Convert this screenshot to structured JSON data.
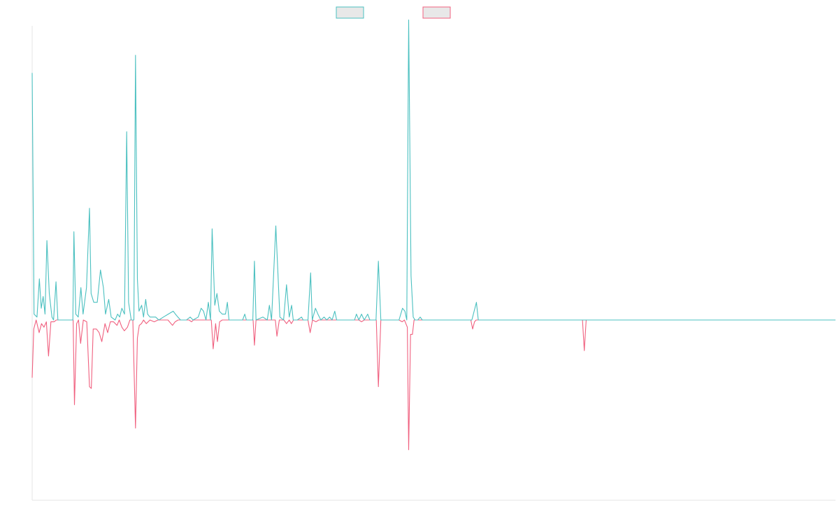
{
  "chart_data": {
    "type": "line",
    "title": "",
    "xlabel": "",
    "ylabel": "",
    "grid": false,
    "legend_position": "top-center",
    "x_range": [
      0,
      300
    ],
    "ylim": [
      -1.0,
      1.0
    ],
    "series": [
      {
        "color": "#4bc0c0",
        "fill": "#e8e8e8",
        "points": [
          [
            0,
            0.84
          ],
          [
            0.7,
            0.02
          ],
          [
            1.8,
            0.01
          ],
          [
            2.7,
            0.14
          ],
          [
            3.4,
            0.04
          ],
          [
            4.1,
            0.08
          ],
          [
            4.8,
            0.02
          ],
          [
            5.5,
            0.27
          ],
          [
            6.4,
            0.09
          ],
          [
            7.4,
            0.01
          ],
          [
            8.0,
            0.0
          ],
          [
            8.9,
            0.13
          ],
          [
            9.6,
            0.0
          ],
          [
            15.2,
            0.0
          ],
          [
            15.6,
            0.3
          ],
          [
            16.3,
            0.02
          ],
          [
            17.2,
            0.01
          ],
          [
            18.2,
            0.11
          ],
          [
            19.0,
            0.02
          ],
          [
            20.3,
            0.11
          ],
          [
            21.4,
            0.38
          ],
          [
            22.0,
            0.09
          ],
          [
            23.0,
            0.06
          ],
          [
            24.3,
            0.06
          ],
          [
            25.5,
            0.17
          ],
          [
            26.6,
            0.11
          ],
          [
            27.4,
            0.02
          ],
          [
            28.6,
            0.07
          ],
          [
            29.5,
            0.01
          ],
          [
            31.0,
            0.0
          ],
          [
            31.9,
            0.02
          ],
          [
            32.7,
            0.01
          ],
          [
            33.5,
            0.04
          ],
          [
            34.5,
            0.02
          ],
          [
            35.3,
            0.64
          ],
          [
            36.0,
            0.06
          ],
          [
            37.0,
            0.0
          ],
          [
            38.0,
            0.0
          ],
          [
            38.6,
            0.9
          ],
          [
            39.3,
            0.14
          ],
          [
            39.9,
            0.03
          ],
          [
            40.9,
            0.05
          ],
          [
            41.6,
            0.01
          ],
          [
            42.4,
            0.07
          ],
          [
            43.1,
            0.02
          ],
          [
            44.0,
            0.01
          ],
          [
            46.1,
            0.01
          ],
          [
            47.3,
            0.0
          ],
          [
            49.0,
            0.01
          ],
          [
            50.8,
            0.02
          ],
          [
            52.7,
            0.03
          ],
          [
            53.5,
            0.02
          ],
          [
            54.4,
            0.01
          ],
          [
            55.4,
            0.0
          ],
          [
            57.6,
            0.0
          ],
          [
            59.0,
            0.01
          ],
          [
            60.1,
            0.0
          ],
          [
            62.0,
            0.01
          ],
          [
            63.1,
            0.04
          ],
          [
            64.0,
            0.03
          ],
          [
            64.9,
            0.0
          ],
          [
            65.8,
            0.06
          ],
          [
            66.6,
            0.0
          ],
          [
            67.2,
            0.31
          ],
          [
            68.2,
            0.05
          ],
          [
            69.0,
            0.09
          ],
          [
            69.9,
            0.03
          ],
          [
            71.0,
            0.02
          ],
          [
            72.2,
            0.02
          ],
          [
            72.9,
            0.06
          ],
          [
            73.5,
            0.0
          ],
          [
            78.6,
            0.0
          ],
          [
            79.4,
            0.02
          ],
          [
            80.0,
            0.0
          ],
          [
            82.4,
            0.0
          ],
          [
            83.0,
            0.2
          ],
          [
            83.6,
            0.0
          ],
          [
            86.2,
            0.01
          ],
          [
            87.8,
            0.0
          ],
          [
            88.6,
            0.05
          ],
          [
            89.4,
            0.0
          ],
          [
            91.0,
            0.32
          ],
          [
            92.5,
            0.01
          ],
          [
            93.9,
            0.0
          ],
          [
            95.0,
            0.12
          ],
          [
            96.0,
            0.01
          ],
          [
            96.9,
            0.05
          ],
          [
            97.5,
            0.0
          ],
          [
            99.0,
            0.0
          ],
          [
            100.6,
            0.01
          ],
          [
            101.2,
            0.0
          ],
          [
            103.0,
            0.0
          ],
          [
            104.0,
            0.16
          ],
          [
            104.6,
            0.0
          ],
          [
            105.8,
            0.04
          ],
          [
            106.7,
            0.02
          ],
          [
            107.8,
            0.0
          ],
          [
            109.0,
            0.01
          ],
          [
            110.0,
            0.0
          ],
          [
            111.1,
            0.01
          ],
          [
            112.0,
            0.0
          ],
          [
            113.0,
            0.03
          ],
          [
            113.7,
            0.0
          ],
          [
            120.4,
            0.0
          ],
          [
            121.1,
            0.02
          ],
          [
            122.0,
            0.0
          ],
          [
            123.0,
            0.02
          ],
          [
            124.0,
            0.0
          ],
          [
            125.3,
            0.02
          ],
          [
            126.1,
            0.0
          ],
          [
            128.4,
            0.0
          ],
          [
            129.3,
            0.2
          ],
          [
            130.2,
            0.0
          ],
          [
            137.0,
            0.0
          ],
          [
            138.3,
            0.04
          ],
          [
            139.2,
            0.03
          ],
          [
            139.9,
            0.0
          ],
          [
            140.6,
            1.02
          ],
          [
            141.5,
            0.15
          ],
          [
            142.3,
            0.01
          ],
          [
            143.0,
            0.0
          ],
          [
            144.0,
            0.0
          ],
          [
            144.9,
            0.01
          ],
          [
            145.7,
            0.0
          ],
          [
            149.0,
            0.0
          ],
          [
            164.2,
            0.0
          ],
          [
            165.9,
            0.06
          ],
          [
            166.6,
            0.0
          ],
          [
            168.0,
            0.0
          ],
          [
            300,
            0.0
          ]
        ]
      },
      {
        "color": "#f0607f",
        "fill": "#e8e8e8",
        "points": [
          [
            0,
            -0.32
          ],
          [
            0.6,
            -0.05
          ],
          [
            1.5,
            0.0
          ],
          [
            2.6,
            -0.07
          ],
          [
            3.5,
            -0.02
          ],
          [
            4.4,
            -0.04
          ],
          [
            5.3,
            -0.01
          ],
          [
            6.1,
            -0.2
          ],
          [
            7.0,
            -0.01
          ],
          [
            8.2,
            -0.01
          ],
          [
            9.0,
            0.0
          ],
          [
            15.3,
            0.0
          ],
          [
            15.8,
            -0.47
          ],
          [
            16.6,
            -0.02
          ],
          [
            17.3,
            0.0
          ],
          [
            18.1,
            -0.13
          ],
          [
            19.1,
            0.0
          ],
          [
            20.4,
            -0.01
          ],
          [
            21.4,
            -0.37
          ],
          [
            22.1,
            -0.38
          ],
          [
            22.8,
            -0.05
          ],
          [
            24.0,
            -0.05
          ],
          [
            25.0,
            -0.07
          ],
          [
            26.0,
            -0.12
          ],
          [
            27.2,
            -0.02
          ],
          [
            28.2,
            -0.07
          ],
          [
            29.2,
            -0.01
          ],
          [
            30.4,
            -0.01
          ],
          [
            31.7,
            -0.03
          ],
          [
            32.5,
            0.0
          ],
          [
            33.5,
            -0.04
          ],
          [
            34.4,
            -0.06
          ],
          [
            35.6,
            -0.04
          ],
          [
            36.5,
            0.0
          ],
          [
            37.6,
            0.0
          ],
          [
            38.6,
            -0.6
          ],
          [
            39.3,
            -0.1
          ],
          [
            40.0,
            -0.03
          ],
          [
            40.8,
            -0.02
          ],
          [
            41.6,
            0.0
          ],
          [
            42.6,
            -0.02
          ],
          [
            44.0,
            0.0
          ],
          [
            45.6,
            -0.01
          ],
          [
            47.0,
            0.0
          ],
          [
            50.7,
            0.0
          ],
          [
            52.4,
            -0.03
          ],
          [
            53.4,
            -0.01
          ],
          [
            54.5,
            0.0
          ],
          [
            58.6,
            0.0
          ],
          [
            59.5,
            -0.01
          ],
          [
            60.2,
            0.0
          ],
          [
            63.0,
            0.0
          ],
          [
            64.0,
            0.0
          ],
          [
            65.5,
            0.0
          ],
          [
            66.9,
            0.0
          ],
          [
            67.6,
            -0.16
          ],
          [
            68.5,
            -0.02
          ],
          [
            69.2,
            -0.12
          ],
          [
            70.0,
            -0.01
          ],
          [
            71.0,
            0.0
          ],
          [
            82.0,
            0.0
          ],
          [
            82.5,
            0.0
          ],
          [
            83.0,
            -0.14
          ],
          [
            83.6,
            0.0
          ],
          [
            88.0,
            0.0
          ],
          [
            89.0,
            0.0
          ],
          [
            90.8,
            0.0
          ],
          [
            91.4,
            -0.09
          ],
          [
            92.3,
            0.0
          ],
          [
            94.0,
            0.0
          ],
          [
            95.0,
            -0.02
          ],
          [
            96.0,
            0.0
          ],
          [
            96.8,
            -0.02
          ],
          [
            97.6,
            0.0
          ],
          [
            99.0,
            0.0
          ],
          [
            100.4,
            0.0
          ],
          [
            101.2,
            0.0
          ],
          [
            103.0,
            0.0
          ],
          [
            103.8,
            -0.07
          ],
          [
            104.7,
            0.0
          ],
          [
            106.0,
            -0.01
          ],
          [
            107.0,
            0.0
          ],
          [
            108.0,
            0.0
          ],
          [
            120.0,
            0.0
          ],
          [
            121.0,
            0.0
          ],
          [
            122.0,
            0.0
          ],
          [
            123.0,
            -0.01
          ],
          [
            124.0,
            0.0
          ],
          [
            125.0,
            0.0
          ],
          [
            128.0,
            0.0
          ],
          [
            128.5,
            0.0
          ],
          [
            129.3,
            -0.37
          ],
          [
            130.2,
            0.0
          ],
          [
            136.0,
            0.0
          ],
          [
            137.0,
            0.0
          ],
          [
            138.2,
            -0.01
          ],
          [
            139.0,
            0.0
          ],
          [
            140.1,
            -0.04
          ],
          [
            140.6,
            -0.72
          ],
          [
            141.3,
            -0.08
          ],
          [
            142.0,
            -0.08
          ],
          [
            142.6,
            0.0
          ],
          [
            143.8,
            0.0
          ],
          [
            144.4,
            0.0
          ],
          [
            145.6,
            0.0
          ],
          [
            149.0,
            0.0
          ],
          [
            163.8,
            0.0
          ],
          [
            164.5,
            -0.05
          ],
          [
            165.2,
            -0.01
          ],
          [
            165.8,
            0.0
          ],
          [
            168.0,
            0.0
          ],
          [
            205.5,
            0.0
          ],
          [
            206.2,
            -0.17
          ],
          [
            206.9,
            0.0
          ],
          [
            300,
            0.0
          ]
        ]
      }
    ]
  }
}
